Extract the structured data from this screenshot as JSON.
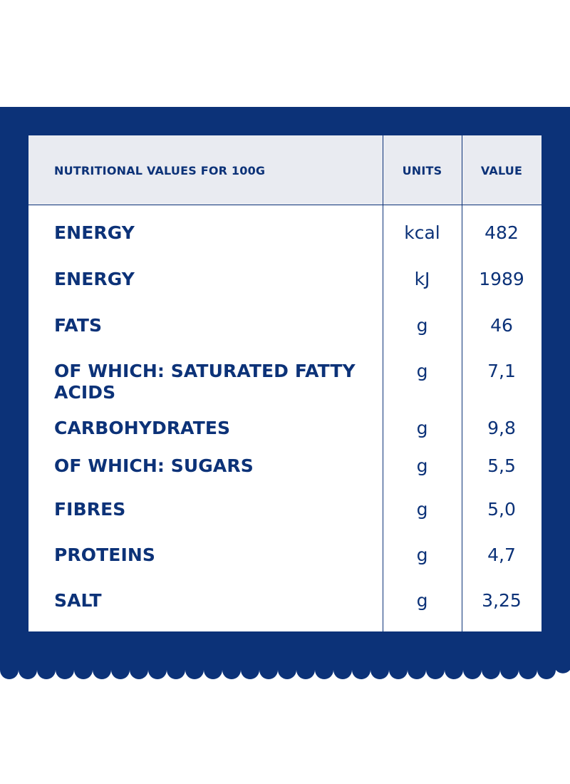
{
  "table": {
    "headers": {
      "name": "NUTRITIONAL VALUES FOR 100G",
      "units": "UNITS",
      "value": "VALUE"
    },
    "rows": [
      {
        "name": "ENERGY",
        "unit": "kcal",
        "value": "482"
      },
      {
        "name": "ENERGY",
        "unit": "kJ",
        "value": "1989"
      },
      {
        "name": "FATS",
        "unit": "g",
        "value": "46"
      },
      {
        "name": "OF WHICH: SATURATED FATTY ACIDS",
        "unit": "g",
        "value": "7,1"
      },
      {
        "name": "CARBOHYDRATES",
        "unit": "g",
        "value": "9,8"
      },
      {
        "name": "OF WHICH: SUGARS",
        "unit": "g",
        "value": "5,5"
      },
      {
        "name": "FIBRES",
        "unit": "g",
        "value": "5,0"
      },
      {
        "name": "PROTEINS",
        "unit": "g",
        "value": "4,7"
      },
      {
        "name": "SALT",
        "unit": "g",
        "value": "3,25"
      }
    ]
  },
  "colors": {
    "navy": "#0c3278",
    "header_bg": "#e9ebf1",
    "background": "#ffffff"
  }
}
